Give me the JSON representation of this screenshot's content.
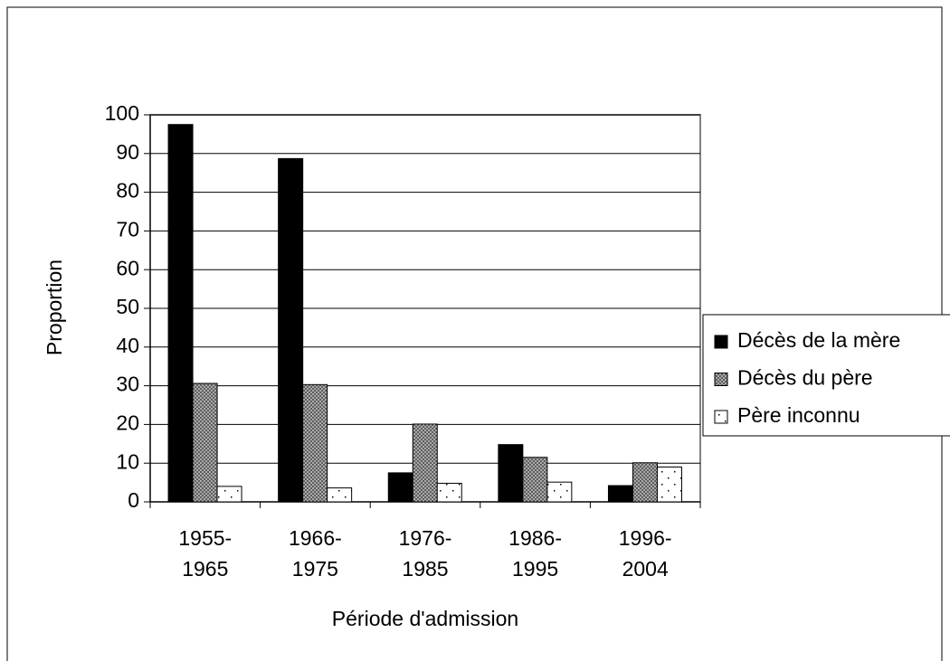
{
  "chart_data": {
    "type": "bar",
    "x_label": "Période d'admission",
    "y_label": "Proportion",
    "categories": [
      "1955-1965",
      "1966-1975",
      "1976-1985",
      "1986-1995",
      "1996-2004"
    ],
    "series": [
      {
        "name": "Décès de la mère",
        "color": "#000000",
        "values": [
          97.5,
          88.7,
          7.5,
          14.8,
          4.2
        ]
      },
      {
        "name": "Décès du père",
        "color": "#808080",
        "values": [
          30.6,
          30.3,
          20.1,
          11.5,
          10.1
        ]
      },
      {
        "name": "Père inconnu",
        "color": "#ffffff",
        "values": [
          4.0,
          3.6,
          4.8,
          5.1,
          9.0
        ]
      }
    ],
    "ylim": [
      0,
      100
    ],
    "yticks": [
      0,
      10,
      20,
      30,
      40,
      50,
      60,
      70,
      80,
      90,
      100
    ],
    "grid": true,
    "legend": "right"
  }
}
